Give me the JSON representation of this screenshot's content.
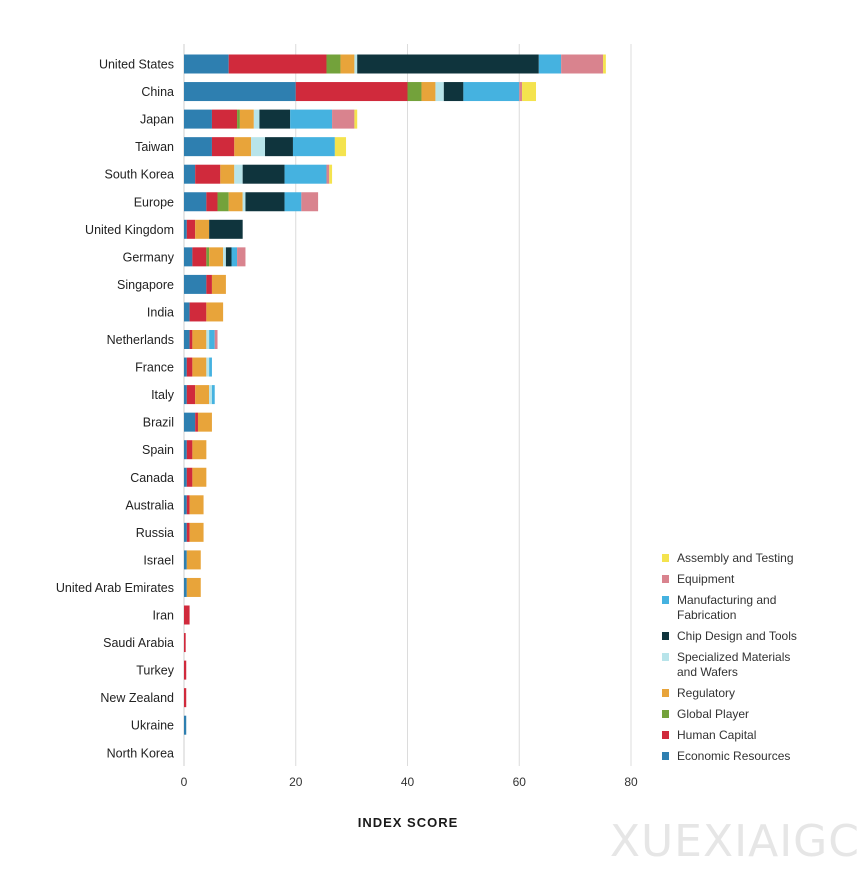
{
  "chart_data": {
    "type": "bar",
    "orientation": "horizontal",
    "stacked": true,
    "xlabel": "INDEX SCORE",
    "xlim": [
      0,
      80
    ],
    "xticks": [
      0,
      20,
      40,
      60,
      80
    ],
    "grid": true,
    "legend_position": "bottom-right",
    "categories": [
      "United States",
      "China",
      "Japan",
      "Taiwan",
      "South Korea",
      "Europe",
      "United Kingdom",
      "Germany",
      "Singapore",
      "India",
      "Netherlands",
      "France",
      "Italy",
      "Brazil",
      "Spain",
      "Canada",
      "Australia",
      "Russia",
      "Israel",
      "United Arab Emirates",
      "Iran",
      "Saudi Arabia",
      "Turkey",
      "New Zealand",
      "Ukraine",
      "North Korea"
    ],
    "series": [
      {
        "name": "Economic Resources",
        "color": "#2e7fb0",
        "values": [
          8,
          20,
          5,
          5,
          2,
          4,
          0.5,
          1.5,
          4,
          1,
          1,
          0.5,
          0.5,
          2,
          0.5,
          0.5,
          0.5,
          0.5,
          0.5,
          0.5,
          0,
          0,
          0,
          0,
          0.4,
          0
        ]
      },
      {
        "name": "Human Capital",
        "color": "#d02a3c",
        "values": [
          17.5,
          20,
          4.5,
          4,
          4.5,
          2,
          1.5,
          2.5,
          1,
          3,
          0.5,
          1,
          1.5,
          0.5,
          1,
          1,
          0.5,
          0.5,
          0,
          0,
          1,
          0.3,
          0.4,
          0.4,
          0,
          0
        ]
      },
      {
        "name": "Global Player",
        "color": "#73a23b",
        "values": [
          2.5,
          2.5,
          0.5,
          0,
          0,
          2,
          0,
          0.5,
          0,
          0,
          0,
          0,
          0,
          0,
          0,
          0,
          0,
          0,
          0,
          0,
          0,
          0,
          0,
          0,
          0,
          0
        ]
      },
      {
        "name": "Regulatory",
        "color": "#e8a43a",
        "values": [
          2.5,
          2.5,
          2.5,
          3,
          2.5,
          2.5,
          2.5,
          2.5,
          2.5,
          3,
          2.5,
          2.5,
          2.5,
          2.5,
          2.5,
          2.5,
          2.5,
          2.5,
          2.5,
          2.5,
          0,
          0,
          0,
          0,
          0,
          0
        ]
      },
      {
        "name": "Specialized Materials and Wafers",
        "color": "#b8e4ea",
        "values": [
          0.5,
          1.5,
          1,
          2.5,
          1.5,
          0.5,
          0,
          0.5,
          0,
          0,
          0.5,
          0.5,
          0.5,
          0,
          0,
          0,
          0,
          0,
          0,
          0,
          0,
          0,
          0,
          0,
          0,
          0
        ]
      },
      {
        "name": "Chip Design and Tools",
        "color": "#0f343d",
        "values": [
          32.5,
          3.5,
          5.5,
          5,
          7.5,
          7,
          6,
          1,
          0,
          0,
          0,
          0,
          0,
          0,
          0,
          0,
          0,
          0,
          0,
          0,
          0,
          0,
          0,
          0,
          0,
          0
        ]
      },
      {
        "name": "Manufacturing and Fabrication",
        "color": "#45b2e0",
        "values": [
          4,
          10,
          7.5,
          7.5,
          7.5,
          3,
          0,
          1,
          0,
          0,
          1,
          0.5,
          0.5,
          0,
          0,
          0,
          0,
          0,
          0,
          0,
          0,
          0,
          0,
          0,
          0,
          0
        ]
      },
      {
        "name": "Equipment",
        "color": "#d9838e",
        "values": [
          7.5,
          0.5,
          4,
          0,
          0.5,
          3,
          0,
          1.5,
          0,
          0,
          0.5,
          0,
          0,
          0,
          0,
          0,
          0,
          0,
          0,
          0,
          0,
          0,
          0,
          0,
          0,
          0
        ]
      },
      {
        "name": "Assembly and Testing",
        "color": "#f4e34e",
        "values": [
          0.5,
          2.5,
          0.5,
          2,
          0.5,
          0,
          0,
          0,
          0,
          0,
          0,
          0,
          0,
          0,
          0,
          0,
          0,
          0,
          0,
          0,
          0,
          0,
          0,
          0,
          0,
          0
        ]
      }
    ],
    "legend_order": [
      "Assembly and Testing",
      "Equipment",
      "Manufacturing and Fabrication",
      "Chip Design and Tools",
      "Specialized Materials and Wafers",
      "Regulatory",
      "Global Player",
      "Human Capital",
      "Economic Resources"
    ]
  },
  "legend_lines": {
    "Assembly and Testing": [
      "Assembly and Testing"
    ],
    "Equipment": [
      "Equipment"
    ],
    "Manufacturing and Fabrication": [
      "Manufacturing and",
      "Fabrication"
    ],
    "Chip Design and Tools": [
      "Chip Design and Tools"
    ],
    "Specialized Materials and Wafers": [
      "Specialized Materials",
      "and Wafers"
    ],
    "Regulatory": [
      "Regulatory"
    ],
    "Global Player": [
      "Global Player"
    ],
    "Human Capital": [
      "Human Capital"
    ],
    "Economic Resources": [
      "Economic Resources"
    ]
  },
  "watermark": "XUEXIAIGC"
}
